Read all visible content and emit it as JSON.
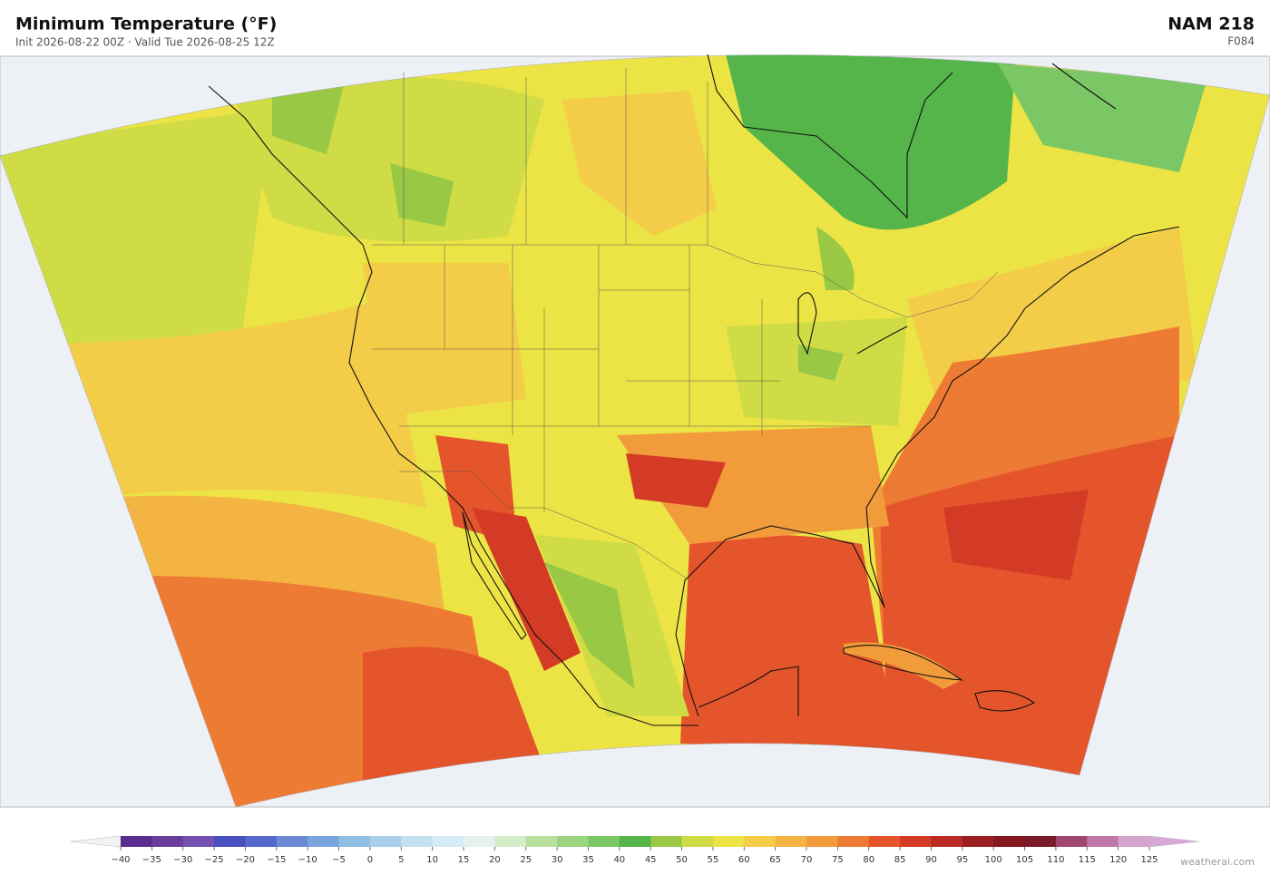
{
  "header": {
    "title": "Minimum Temperature  (°F)",
    "subtitle": "Init 2026-08-22 00Z  ·  Valid Tue 2026-08-25 12Z",
    "model": "NAM  218",
    "forecast_hour": "F084"
  },
  "colorbar": {
    "ticks": [
      {
        "value": -40,
        "label": "−40"
      },
      {
        "value": -35,
        "label": "−35"
      },
      {
        "value": -30,
        "label": "−30"
      },
      {
        "value": -25,
        "label": "−25"
      },
      {
        "value": -20,
        "label": "−20"
      },
      {
        "value": -15,
        "label": "−15"
      },
      {
        "value": -10,
        "label": "−10"
      },
      {
        "value": -5,
        "label": "−5"
      },
      0,
      5,
      10,
      15,
      20,
      25,
      30,
      35,
      40,
      45,
      50,
      55,
      60,
      65,
      70,
      75,
      80,
      85,
      90,
      95,
      100,
      105,
      110,
      115,
      120,
      125
    ],
    "colors": [
      "#5b2d8e",
      "#6a3d9a",
      "#7450b0",
      "#4a4fbf",
      "#5468cc",
      "#6a8bd4",
      "#7aa5dc",
      "#8fbde3",
      "#a8d0ea",
      "#c2e0ef",
      "#d6ebf3",
      "#e3f2ee",
      "#d4ecc8",
      "#b8e09c",
      "#9ad57e",
      "#7cc765",
      "#55b54a",
      "#99c844",
      "#cfdc45",
      "#ece445",
      "#f3cc48",
      "#f4b442",
      "#f29b3b",
      "#ee7b33",
      "#e4552b",
      "#d43b27",
      "#b82a23",
      "#9a1f22",
      "#85191f",
      "#7a1a2a",
      "#a0476f",
      "#c078a8",
      "#d4a4cc"
    ],
    "under_color": "#f2f2f2",
    "over_color": "#d8a8d8"
  },
  "watermark": "weatherai.com"
}
